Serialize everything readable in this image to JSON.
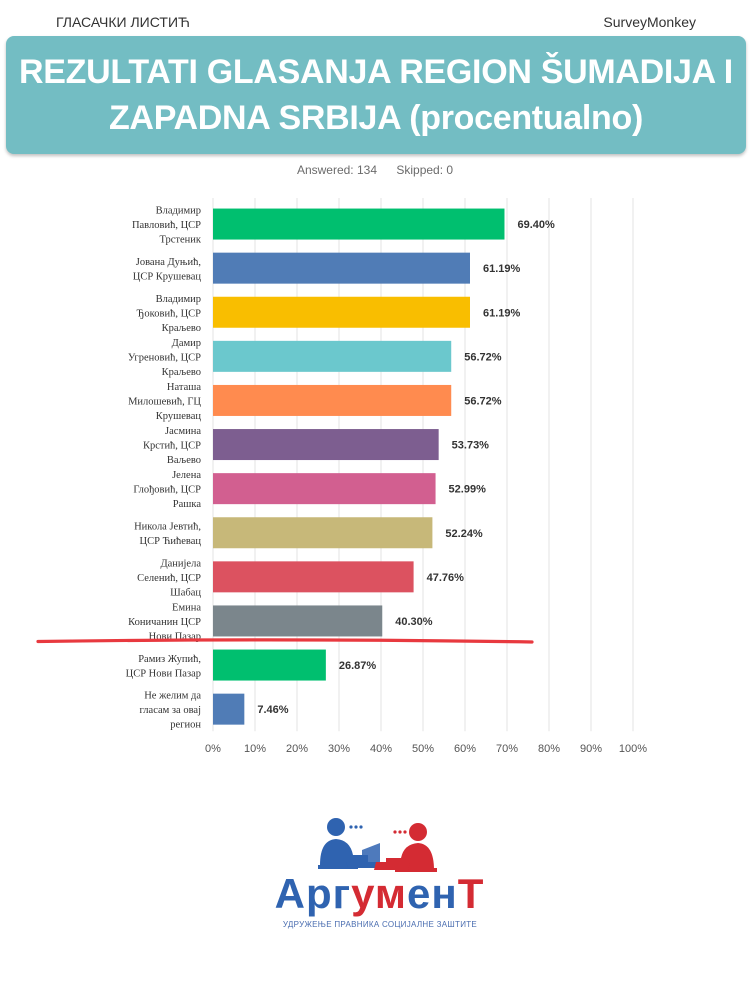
{
  "header": {
    "left": "ГЛАСАЧКИ ЛИСТИЋ",
    "right": "SurveyMonkey"
  },
  "banner": {
    "title_line1": "REZULTATI GLASANJA REGION ŠUMADIJA I",
    "title_line2": "ZAPADNA SRBIJA (procentualno)",
    "color": "#73bdc3"
  },
  "stats": {
    "answered": "Answered: 134",
    "skipped": "Skipped: 0"
  },
  "chart_data": {
    "type": "bar",
    "orientation": "horizontal",
    "title": "",
    "xlabel": "",
    "ylabel": "",
    "xlim": [
      0,
      100
    ],
    "ticks": [
      "0%",
      "10%",
      "20%",
      "30%",
      "40%",
      "50%",
      "60%",
      "70%",
      "80%",
      "90%",
      "100%"
    ],
    "grid": true,
    "categories": [
      [
        "Владимир",
        "Павловић, ЦСР",
        "Трстеник"
      ],
      [
        "Јована Дуњић,",
        "ЦСР Крушевац"
      ],
      [
        "Владимир",
        "Ђоковић, ЦСР",
        "Краљево"
      ],
      [
        "Дамир",
        "Угреновић, ЦСР",
        "Краљево"
      ],
      [
        "Наташа",
        "Милошевић, ГЦ",
        "Крушевац"
      ],
      [
        "Јасмина",
        "Крстић, ЦСР",
        "Ваљево"
      ],
      [
        "Јелена",
        "Глођовић, ЦСР",
        "Рашка"
      ],
      [
        "Никола Јевтић,",
        "ЦСР Ћићевац"
      ],
      [
        "Данијела",
        "Селенић, ЦСР",
        "Шабац"
      ],
      [
        "Емина",
        "Коничанин ЦСР",
        "Нови Пазар"
      ],
      [
        "Рамиз Жупић,",
        "ЦСР Нови Пазар"
      ],
      [
        "Не желим да",
        "гласам за овај",
        "регион"
      ]
    ],
    "values": [
      69.4,
      61.19,
      61.19,
      56.72,
      56.72,
      53.73,
      52.99,
      52.24,
      47.76,
      40.3,
      26.87,
      7.46
    ],
    "value_labels": [
      "69.40%",
      "61.19%",
      "61.19%",
      "56.72%",
      "56.72%",
      "53.73%",
      "52.99%",
      "52.24%",
      "47.76%",
      "40.30%",
      "26.87%",
      "7.46%"
    ],
    "colors": [
      "#00bf6f",
      "#507cb6",
      "#f9be00",
      "#6bc8cd",
      "#ff8b4f",
      "#7d5e90",
      "#d25f90",
      "#c7b879",
      "#dc5260",
      "#7b868c",
      "#00bf6f",
      "#507cb6"
    ],
    "cutoff_line": {
      "after_index": 9,
      "color": "#e8393f"
    }
  },
  "logo": {
    "word_parts": [
      "Арг",
      "ум",
      "ен",
      "Т"
    ],
    "word_colors": [
      "#2f63b0",
      "#d42b33",
      "#2f63b0",
      "#d42b33"
    ],
    "subtitle": "УДРУЖЕЊЕ ПРАВНИКА СОЦИЈАЛНЕ ЗАШТИТЕ",
    "blue": "#2f63b0",
    "red": "#d42b33"
  }
}
